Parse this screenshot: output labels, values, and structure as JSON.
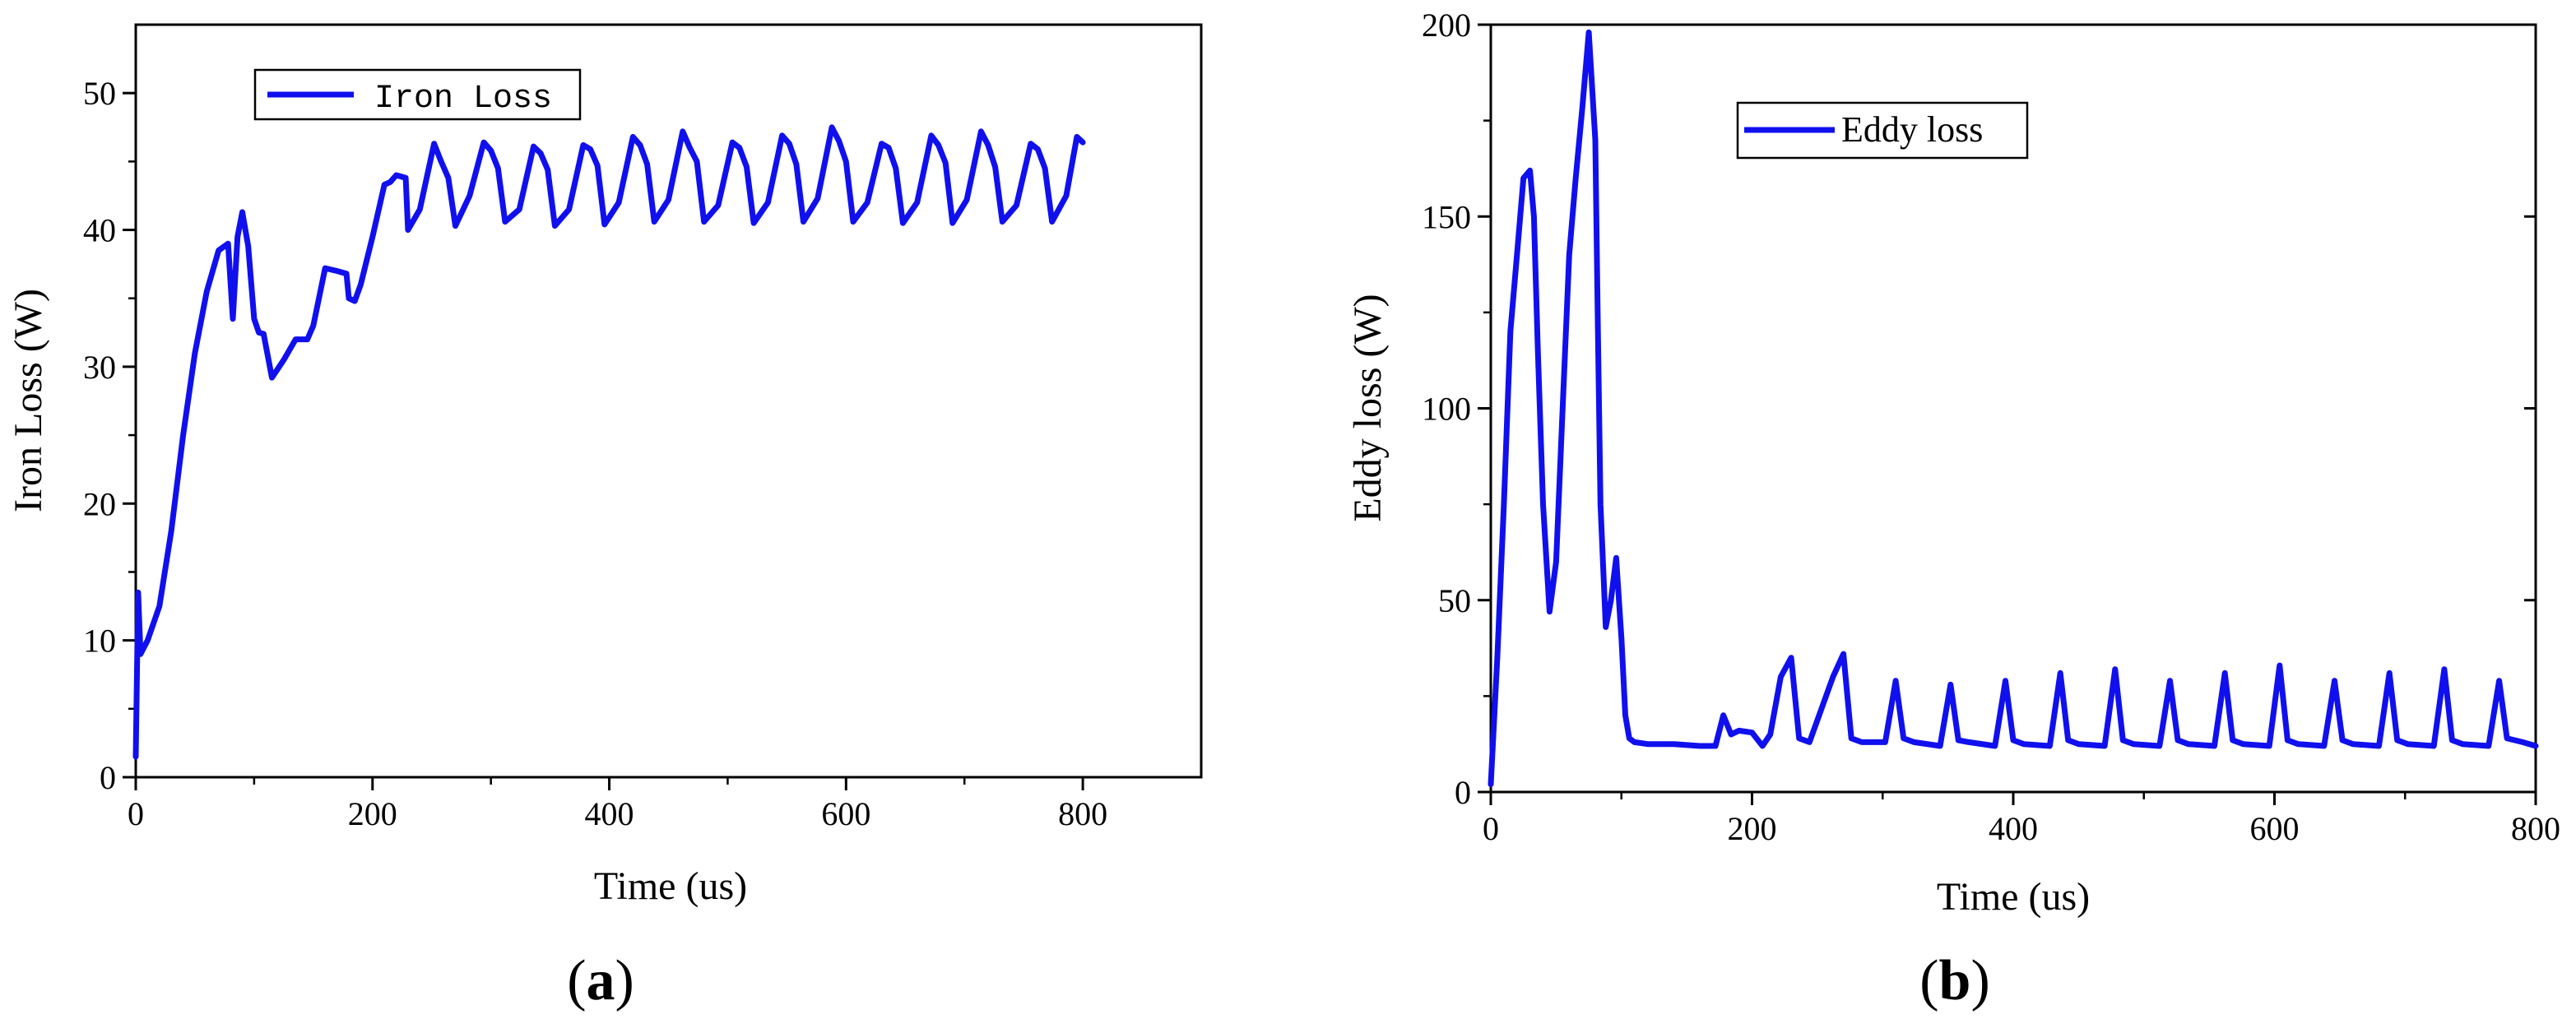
{
  "chart_data": [
    {
      "type": "line",
      "panel_label": {
        "open": "(",
        "letter": "a",
        "close": ")"
      },
      "xlabel": "Time (us)",
      "ylabel": "Iron Loss (W)",
      "xlim": [
        0,
        900
      ],
      "ylim": [
        0,
        55
      ],
      "xticks": [
        0,
        200,
        400,
        600,
        800
      ],
      "yticks": [
        0,
        10,
        20,
        30,
        40,
        50
      ],
      "grid": false,
      "legend_position": "top-left",
      "color": "#1010ee",
      "series": [
        {
          "name": "Iron Loss",
          "x": [
            0,
            2,
            4,
            10,
            20,
            30,
            40,
            50,
            60,
            70,
            78,
            82,
            86,
            90,
            95,
            100,
            104,
            108,
            115,
            125,
            135,
            145,
            150,
            160,
            170,
            178,
            180,
            185,
            190,
            200,
            210,
            215,
            220,
            228,
            230,
            240,
            252,
            258,
            264,
            270,
            282,
            294,
            300,
            306,
            312,
            324,
            336,
            342,
            348,
            354,
            366,
            378,
            384,
            390,
            396,
            408,
            420,
            426,
            432,
            438,
            450,
            462,
            468,
            474,
            480,
            492,
            504,
            510,
            516,
            522,
            534,
            546,
            552,
            558,
            564,
            576,
            588,
            594,
            600,
            606,
            618,
            630,
            636,
            642,
            648,
            660,
            672,
            678,
            684,
            690,
            702,
            714,
            720,
            726,
            732,
            744,
            756,
            762,
            768,
            774,
            786,
            795,
            800
          ],
          "y": [
            1.5,
            13.5,
            9,
            10,
            12.5,
            18,
            25,
            31,
            35.5,
            38.5,
            39,
            33.5,
            39.5,
            41.3,
            38.8,
            33.5,
            32.5,
            32.4,
            29.2,
            30.5,
            32,
            32,
            33,
            37.2,
            37,
            36.8,
            35,
            34.8,
            36,
            39.5,
            43.3,
            43.5,
            44,
            43.8,
            40,
            41.5,
            46.3,
            45,
            43.8,
            40.3,
            42.5,
            46.4,
            45.8,
            44.5,
            40.6,
            41.5,
            46.1,
            45.6,
            44.4,
            40.3,
            41.5,
            46.2,
            45.9,
            44.7,
            40.4,
            42,
            46.8,
            46.2,
            44.8,
            40.6,
            42.2,
            47.2,
            46,
            45,
            40.6,
            41.8,
            46.4,
            46,
            44.6,
            40.5,
            42,
            46.9,
            46.3,
            44.8,
            40.6,
            42.3,
            47.5,
            46.5,
            45,
            40.6,
            42,
            46.3,
            46,
            44.5,
            40.5,
            42,
            46.9,
            46.2,
            44.9,
            40.5,
            42.2,
            47.2,
            46.2,
            44.6,
            40.6,
            41.8,
            46.3,
            45.9,
            44.5,
            40.6,
            42.5,
            46.8,
            46.4
          ]
        }
      ]
    },
    {
      "type": "line",
      "panel_label": {
        "open": "(",
        "letter": "b",
        "close": ")"
      },
      "xlabel": "Time (us)",
      "ylabel": "Eddy loss (W)",
      "xlim": [
        0,
        800
      ],
      "ylim": [
        0,
        200
      ],
      "xticks": [
        0,
        200,
        400,
        600,
        800
      ],
      "yticks": [
        0,
        50,
        100,
        150,
        200
      ],
      "grid": false,
      "legend_position": "top-center",
      "color": "#1010ee",
      "series": [
        {
          "name": "Eddy loss",
          "x": [
            0,
            5,
            10,
            15,
            20,
            25,
            30,
            33,
            36,
            40,
            45,
            50,
            55,
            60,
            65,
            70,
            75,
            80,
            82,
            84,
            88,
            92,
            96,
            100,
            103,
            106,
            110,
            120,
            140,
            160,
            172,
            178,
            184,
            190,
            200,
            208,
            214,
            222,
            230,
            236,
            244,
            262,
            270,
            276,
            284,
            302,
            310,
            316,
            324,
            344,
            352,
            358,
            366,
            386,
            394,
            400,
            408,
            428,
            436,
            442,
            450,
            470,
            478,
            484,
            492,
            512,
            520,
            526,
            534,
            554,
            562,
            568,
            576,
            596,
            604,
            610,
            618,
            638,
            646,
            652,
            660,
            680,
            688,
            694,
            702,
            722,
            730,
            736,
            744,
            764,
            772,
            778,
            790,
            800
          ],
          "y": [
            2,
            35,
            75,
            120,
            140,
            160,
            162,
            150,
            115,
            75,
            47,
            60,
            100,
            140,
            160,
            178,
            198,
            170,
            120,
            75,
            43,
            50,
            61,
            40,
            20,
            14,
            13,
            12.5,
            12.5,
            12,
            12,
            20,
            15,
            16,
            15.5,
            12,
            15,
            30,
            35,
            14,
            13,
            30,
            36,
            14,
            13,
            13,
            29,
            14,
            13,
            12,
            28,
            13.5,
            13,
            12,
            29,
            13.5,
            12.5,
            12,
            31,
            13.5,
            12.5,
            12,
            32,
            13.5,
            12.5,
            12,
            29,
            13.5,
            12.5,
            12,
            31,
            13.5,
            12.5,
            12,
            33,
            13.5,
            12.5,
            12,
            29,
            13.5,
            12.5,
            12,
            31,
            13.5,
            12.5,
            12,
            32,
            13.5,
            12.5,
            12,
            29,
            14,
            13,
            12
          ]
        }
      ]
    }
  ]
}
